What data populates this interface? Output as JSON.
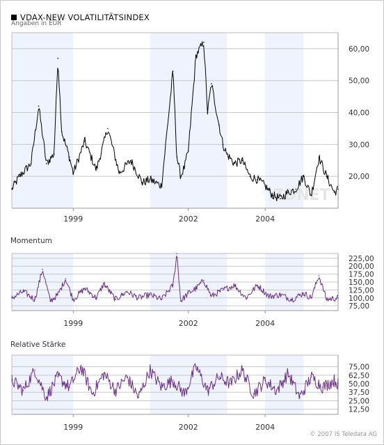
{
  "header": {
    "title": "VDAX-NEW VOLATILITÄTSINDEX",
    "subtitle": "Angaben in EUR"
  },
  "footer": {
    "copyright": "© 2007 IS Teledata AG"
  },
  "watermark": "ZDNET",
  "colors": {
    "price_line": "#000000",
    "indicator_line": "#6a2c8a",
    "band_fill": "#eef3fd",
    "grid": "#c8c8c8"
  },
  "chart_data": [
    {
      "type": "line",
      "title": "VDAX-NEW VOLATILITÄTSINDEX",
      "ylabel": "Angaben in EUR",
      "x_range": [
        1997.4,
        2005.9
      ],
      "ylim": [
        10,
        65
      ],
      "yticks": [
        "20,00",
        "30,00",
        "40,00",
        "50,00",
        "60,00"
      ],
      "xticks": [
        "1999",
        "2002",
        "2004"
      ],
      "bands": [
        [
          1997.4,
          1999.0
        ],
        [
          2001.0,
          2003.0
        ],
        [
          2004.0,
          2005.0
        ]
      ],
      "series": [
        {
          "x": [
            1997.4,
            1997.6,
            1997.9,
            1998.1,
            1998.3,
            1998.5,
            1998.6,
            1998.7,
            1998.9,
            1999.0,
            1999.3,
            1999.6,
            1999.9,
            2000.2,
            2000.5,
            2000.8,
            2001.0,
            2001.3,
            2001.6,
            2001.7,
            2001.8,
            2001.9,
            2002.0,
            2002.2,
            2002.4,
            2002.5,
            2002.6,
            2002.8,
            2002.9,
            2003.0,
            2003.2,
            2003.4,
            2003.6,
            2003.8,
            2004.0,
            2004.2,
            2004.4,
            2004.6,
            2004.8,
            2005.0,
            2005.2,
            2005.4,
            2005.6,
            2005.8,
            2005.9
          ],
          "values": [
            16,
            20,
            24,
            42,
            24,
            27,
            57,
            34,
            26,
            21,
            31,
            22,
            35,
            21,
            25,
            18,
            19,
            17,
            53,
            26,
            20,
            23,
            28,
            58,
            62,
            40,
            49,
            36,
            30,
            27,
            24,
            25,
            20,
            19,
            17,
            14,
            13,
            15,
            16,
            20,
            14,
            26,
            20,
            15,
            16
          ]
        }
      ]
    },
    {
      "type": "line",
      "title": "Momentum",
      "x_range": [
        1997.4,
        2005.9
      ],
      "ylim": [
        60,
        240
      ],
      "yticks": [
        "75,00",
        "100,00",
        "125,00",
        "150,00",
        "175,00",
        "200,00",
        "225,00"
      ],
      "xticks": [
        "1999",
        "2002",
        "2004"
      ],
      "bands": [
        [
          1997.4,
          1999.0
        ],
        [
          2001.0,
          2003.0
        ],
        [
          2004.0,
          2005.0
        ]
      ],
      "series": [
        {
          "x": [
            1997.4,
            1997.7,
            1998.0,
            1998.2,
            1998.4,
            1998.6,
            1998.8,
            1999.0,
            1999.3,
            1999.6,
            1999.8,
            2000.1,
            2000.4,
            2000.7,
            2001.0,
            2001.3,
            2001.6,
            2001.7,
            2001.8,
            2002.0,
            2002.2,
            2002.4,
            2002.6,
            2002.9,
            2003.2,
            2003.5,
            2003.8,
            2004.1,
            2004.4,
            2004.7,
            2005.0,
            2005.2,
            2005.4,
            2005.6,
            2005.9
          ],
          "values": [
            100,
            120,
            95,
            190,
            90,
            110,
            160,
            95,
            130,
            100,
            145,
            95,
            120,
            100,
            110,
            95,
            140,
            240,
            90,
            115,
            130,
            155,
            105,
            125,
            140,
            100,
            140,
            105,
            110,
            95,
            115,
            100,
            170,
            95,
            100
          ]
        }
      ]
    },
    {
      "type": "line",
      "title": "Relative Stärke",
      "x_range": [
        1997.4,
        2005.9
      ],
      "ylim": [
        5,
        92
      ],
      "yticks": [
        "12,50",
        "25,00",
        "37,50",
        "50,00",
        "62,50",
        "75,00"
      ],
      "xticks": [
        "1999",
        "2002",
        "2004"
      ],
      "bands": [
        [
          1997.4,
          1999.0
        ],
        [
          2001.0,
          2003.0
        ],
        [
          2004.0,
          2005.0
        ]
      ],
      "series": [
        {
          "x": [
            1997.4,
            1997.7,
            1998.0,
            1998.3,
            1998.6,
            1998.9,
            1999.2,
            1999.5,
            1999.8,
            2000.1,
            2000.4,
            2000.7,
            2001.0,
            2001.3,
            2001.6,
            2001.9,
            2002.2,
            2002.5,
            2002.8,
            2003.1,
            2003.4,
            2003.7,
            2004.0,
            2004.3,
            2004.6,
            2004.9,
            2005.2,
            2005.5,
            2005.8,
            2005.9
          ],
          "values": [
            55,
            40,
            70,
            30,
            60,
            45,
            75,
            35,
            65,
            40,
            60,
            30,
            70,
            45,
            55,
            35,
            75,
            40,
            60,
            50,
            70,
            35,
            55,
            40,
            65,
            30,
            60,
            45,
            55,
            50
          ]
        }
      ]
    }
  ]
}
